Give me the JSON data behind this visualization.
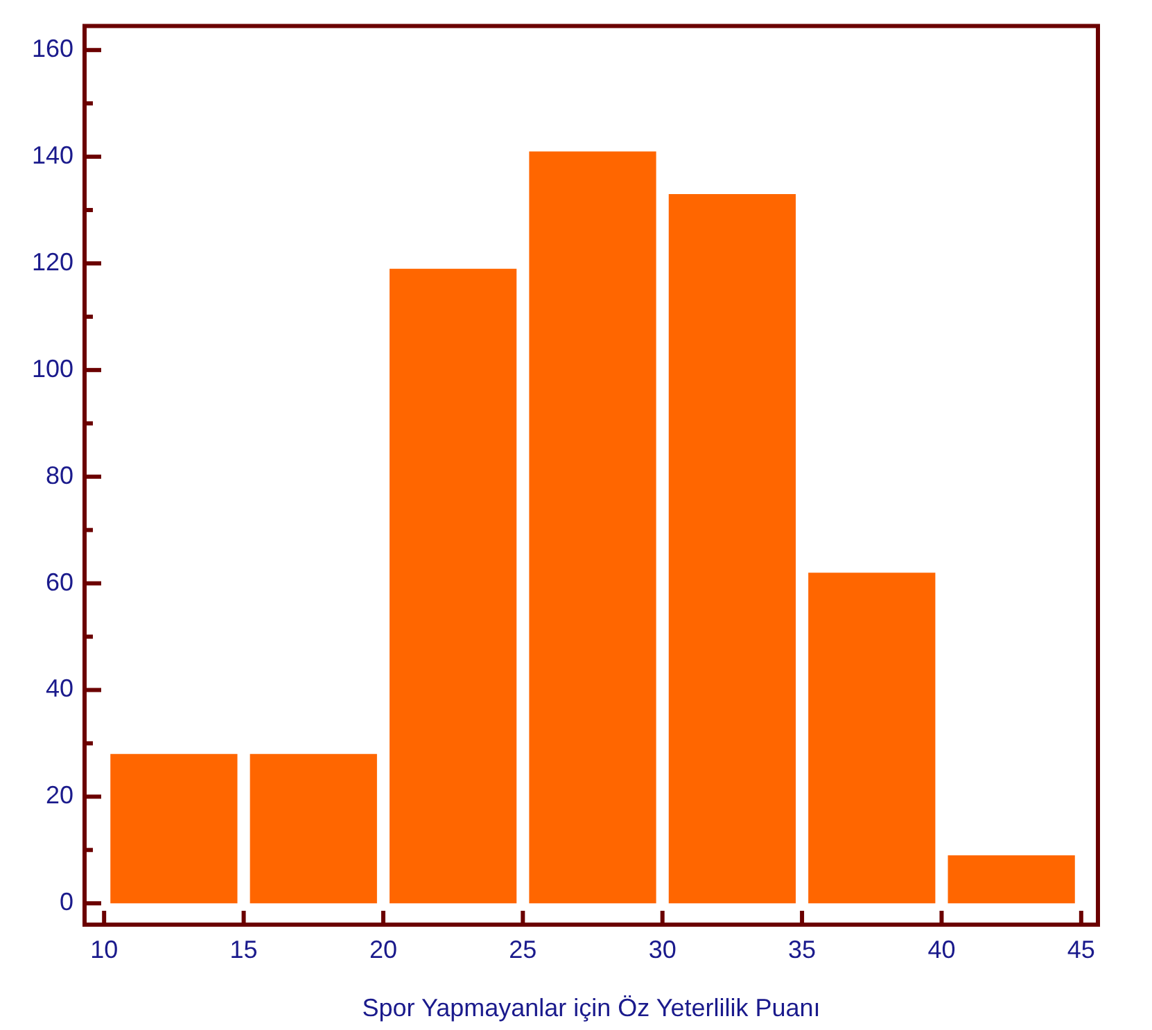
{
  "chart_data": {
    "type": "histogram",
    "xlabel": "Spor Yapmayanlar için Öz Yeterlilik Puanı",
    "bins": [
      10,
      15,
      20,
      25,
      30,
      35,
      40,
      45
    ],
    "values": [
      28,
      28,
      119,
      141,
      133,
      62,
      9
    ],
    "color": "#ff6600",
    "xlim": [
      9.3,
      45.6
    ],
    "xticks": [
      10,
      15,
      20,
      25,
      30,
      35,
      40,
      45
    ],
    "ylim": [
      -4,
      164.5
    ],
    "yticks": [
      0,
      {
        "value": 10,
        "label": null
      },
      20,
      {
        "value": 30,
        "label": null
      },
      40,
      {
        "value": 50,
        "label": null
      },
      60,
      {
        "value": 70,
        "label": null
      },
      80,
      {
        "value": 90,
        "label": null
      },
      100,
      {
        "value": 110,
        "label": null
      },
      120,
      {
        "value": 130,
        "label": null
      },
      140,
      {
        "value": 150,
        "label": null
      },
      160
    ],
    "grid": false,
    "legend": false
  }
}
